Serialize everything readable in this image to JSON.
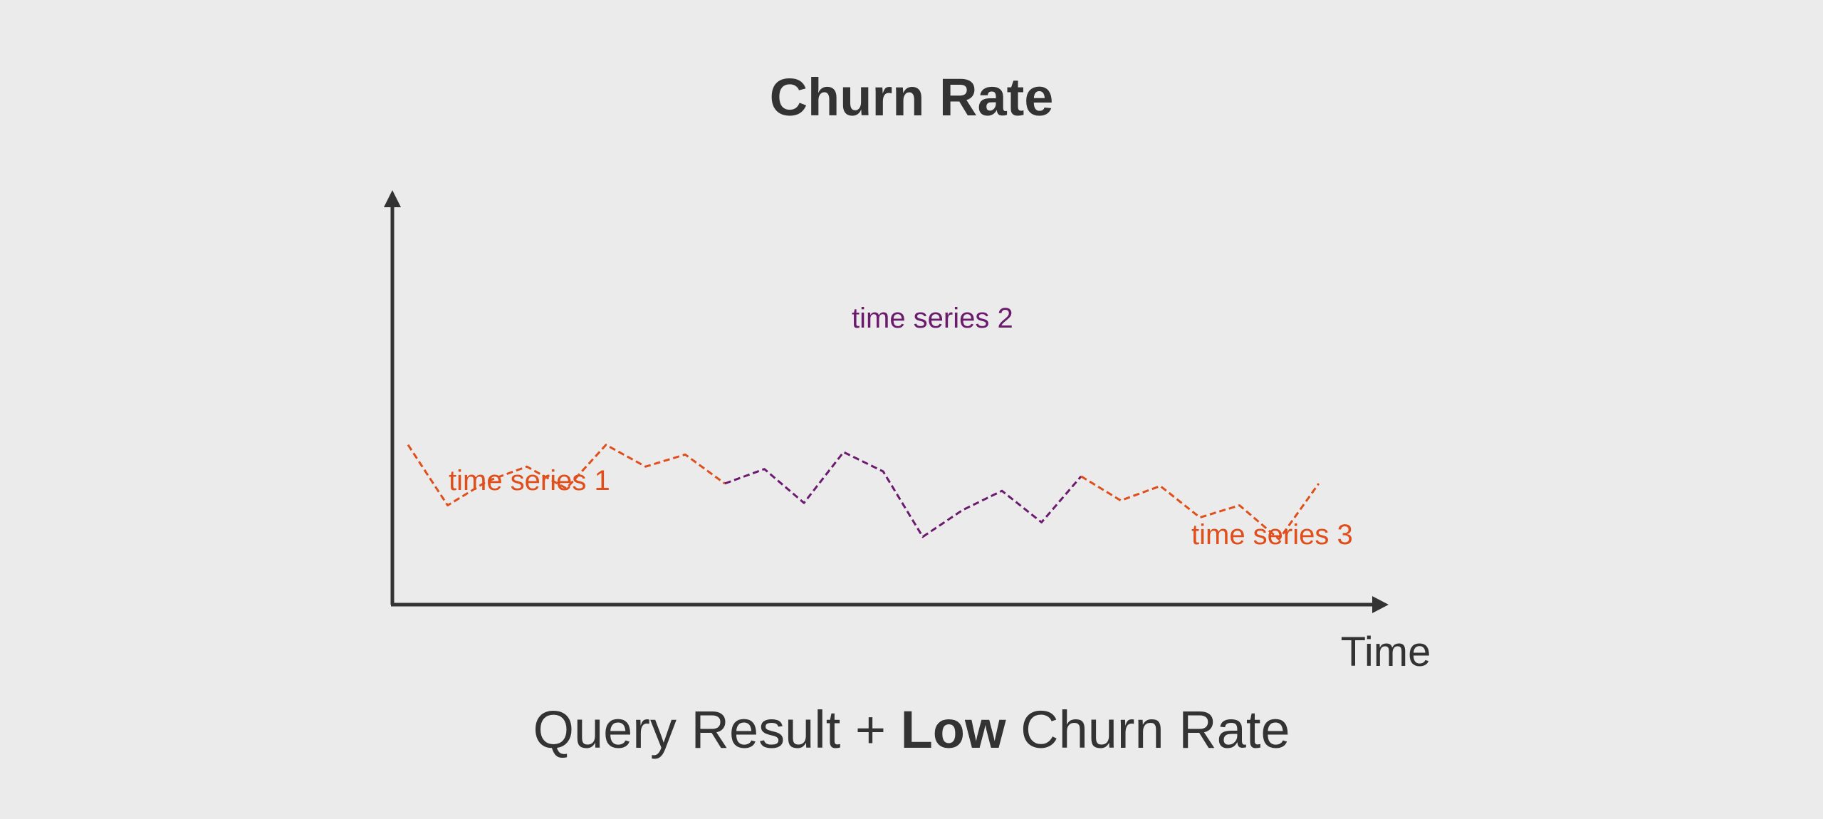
{
  "chart_data": {
    "type": "line",
    "title": "Churn Rate",
    "xlabel": "Time",
    "ylabel": "",
    "grid": false,
    "x": [
      0,
      1,
      2,
      3,
      4,
      5,
      6,
      7,
      8,
      9,
      10,
      11,
      12,
      13,
      14,
      15,
      16,
      17,
      18,
      19,
      20,
      21,
      22,
      23
    ],
    "segments": [
      {
        "label": "time series 1",
        "color": "#e04e1b",
        "x_start": 0,
        "x_end": 8,
        "values": [
          0.66,
          0.41,
          0.51,
          0.57,
          0.48,
          0.66,
          0.57,
          0.62,
          0.5
        ]
      },
      {
        "label": "time series 2",
        "color": "#6b1a6e",
        "x_start": 8,
        "x_end": 17,
        "values": [
          0.5,
          0.56,
          0.42,
          0.63,
          0.55,
          0.28,
          0.39,
          0.47,
          0.34,
          0.53
        ]
      },
      {
        "label": "time series 3",
        "color": "#e04e1b",
        "x_start": 17,
        "x_end": 23,
        "values": [
          0.53,
          0.43,
          0.49,
          0.36,
          0.41,
          0.27,
          0.5
        ]
      }
    ]
  },
  "caption": {
    "before": "Query Result + ",
    "emphasis": "Low",
    "after": " Churn Rate"
  },
  "colors": {
    "background": "#ebebeb",
    "text": "#333333",
    "axis": "#333333"
  }
}
